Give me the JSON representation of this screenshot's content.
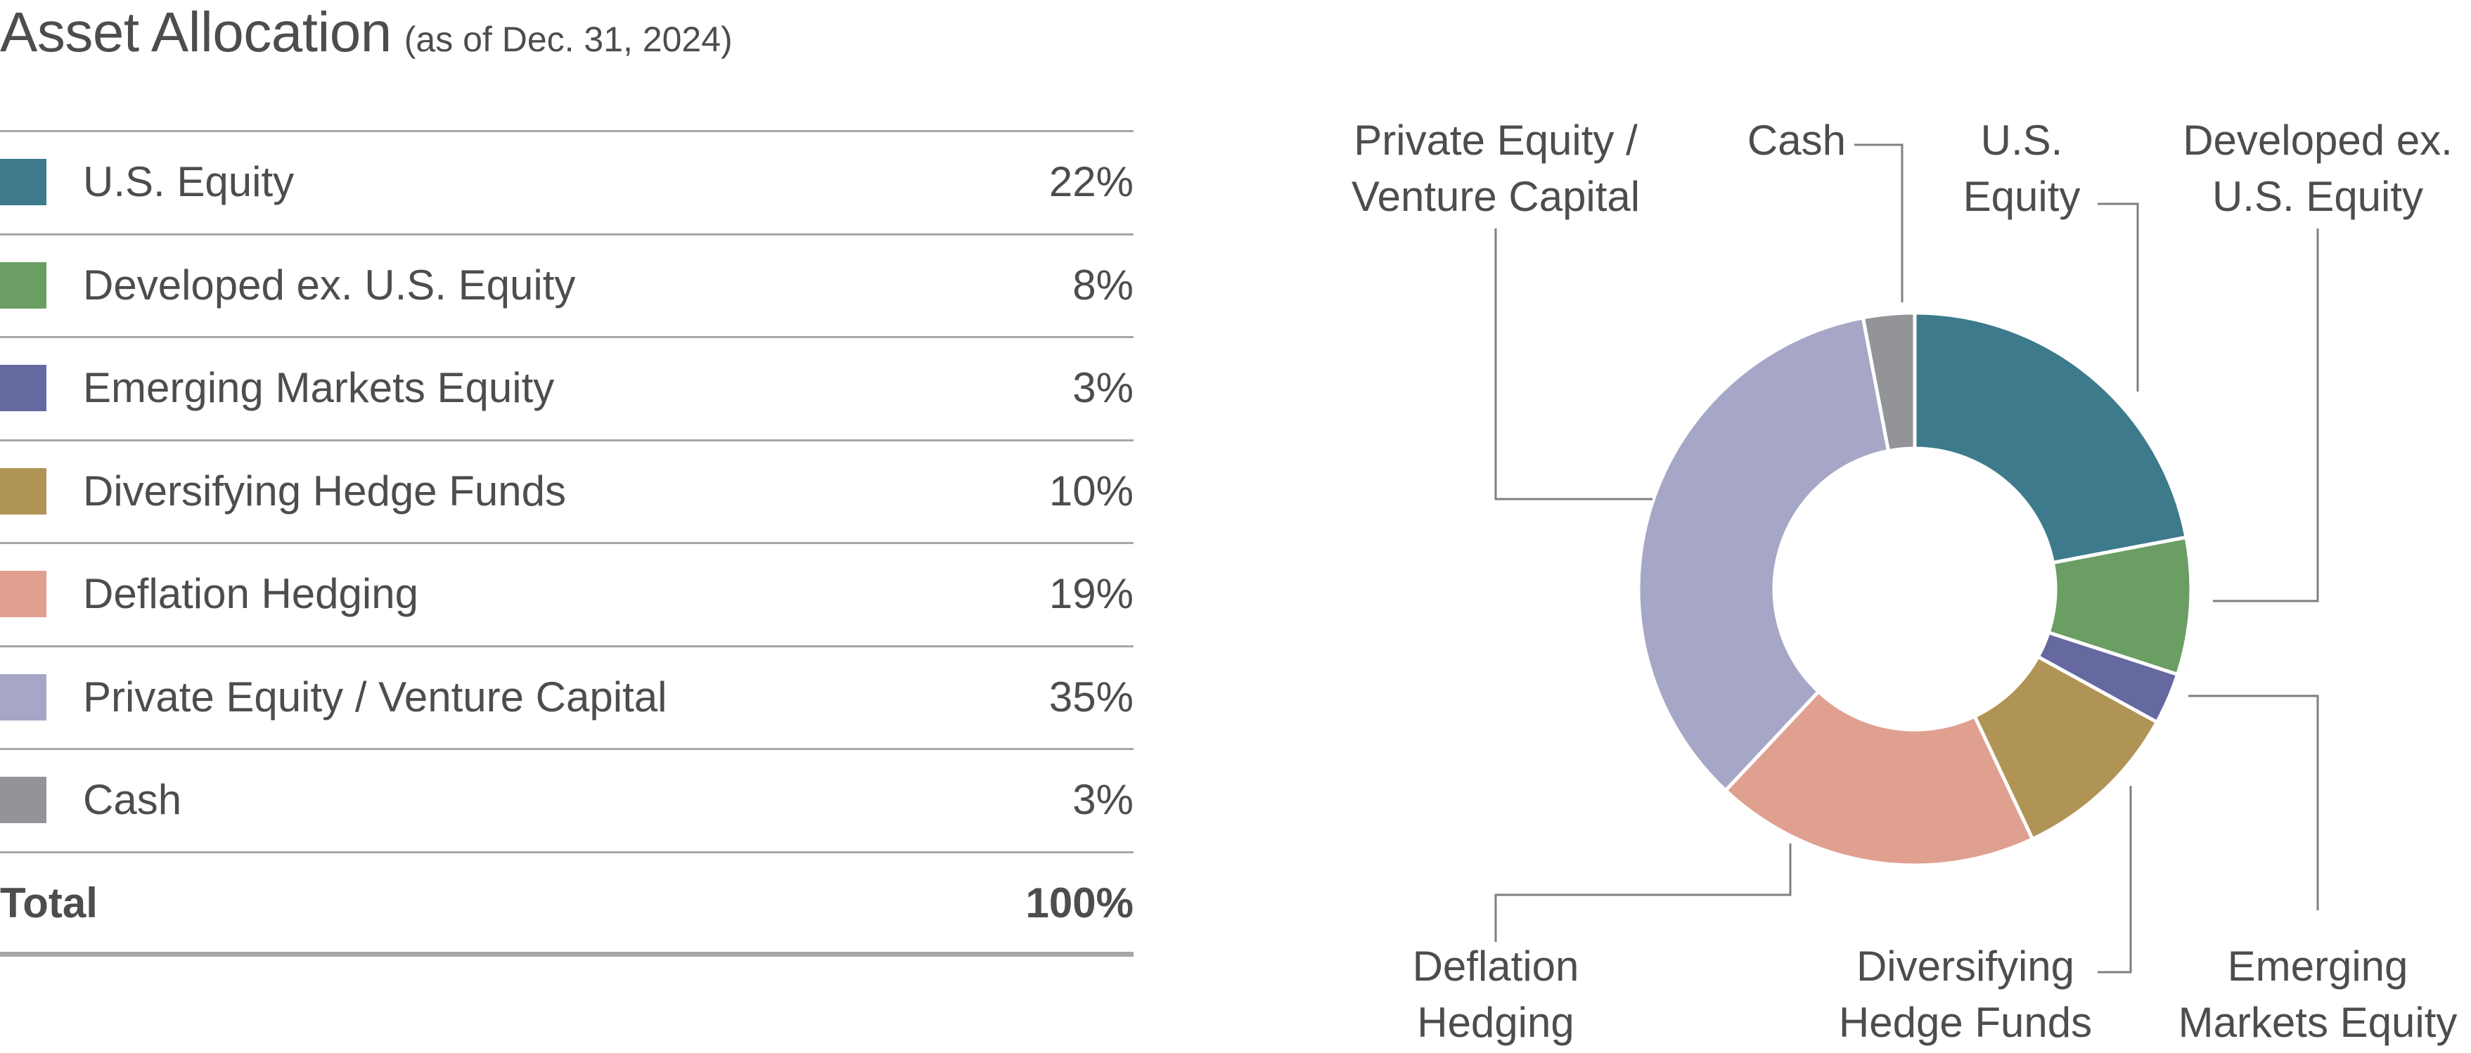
{
  "header": {
    "title": "Asset Allocation",
    "subtitle": "(as of Dec. 31, 2024)"
  },
  "table": {
    "rows": [
      {
        "label": "U.S. Equity",
        "value": "22%"
      },
      {
        "label": "Developed ex. U.S. Equity",
        "value": "8%"
      },
      {
        "label": "Emerging Markets Equity",
        "value": "3%"
      },
      {
        "label": "Diversifying Hedge Funds",
        "value": "10%"
      },
      {
        "label": "Deflation Hedging",
        "value": "19%"
      },
      {
        "label": "Private Equity / Venture Capital",
        "value": "35%"
      },
      {
        "label": "Cash",
        "value": "3%"
      }
    ],
    "total_label": "Total",
    "total_value": "100%"
  },
  "chart_data": {
    "type": "pie",
    "variant": "donut",
    "categories": [
      "U.S. Equity",
      "Developed ex. U.S. Equity",
      "Emerging Markets Equity",
      "Diversifying Hedge Funds",
      "Deflation Hedging",
      "Private Equity / Venture Capital",
      "Cash"
    ],
    "values": [
      22,
      8,
      3,
      10,
      19,
      35,
      3
    ],
    "colors": [
      "#3d7a8c",
      "#6a9e63",
      "#6569a0",
      "#b09456",
      "#dfa090",
      "#a6a7c6",
      "#939497"
    ],
    "callout_labels": [
      [
        "U.S.",
        "Equity"
      ],
      [
        "Developed ex.",
        "U.S. Equity"
      ],
      [
        "Emerging",
        "Markets Equity"
      ],
      [
        "Diversifying",
        "Hedge Funds"
      ],
      [
        "Deflation",
        "Hedging"
      ],
      [
        "Private Equity /",
        "Venture Capital"
      ],
      [
        "Cash"
      ]
    ],
    "start": "12 o'clock",
    "direction": "clockwise",
    "legend": "left table"
  }
}
